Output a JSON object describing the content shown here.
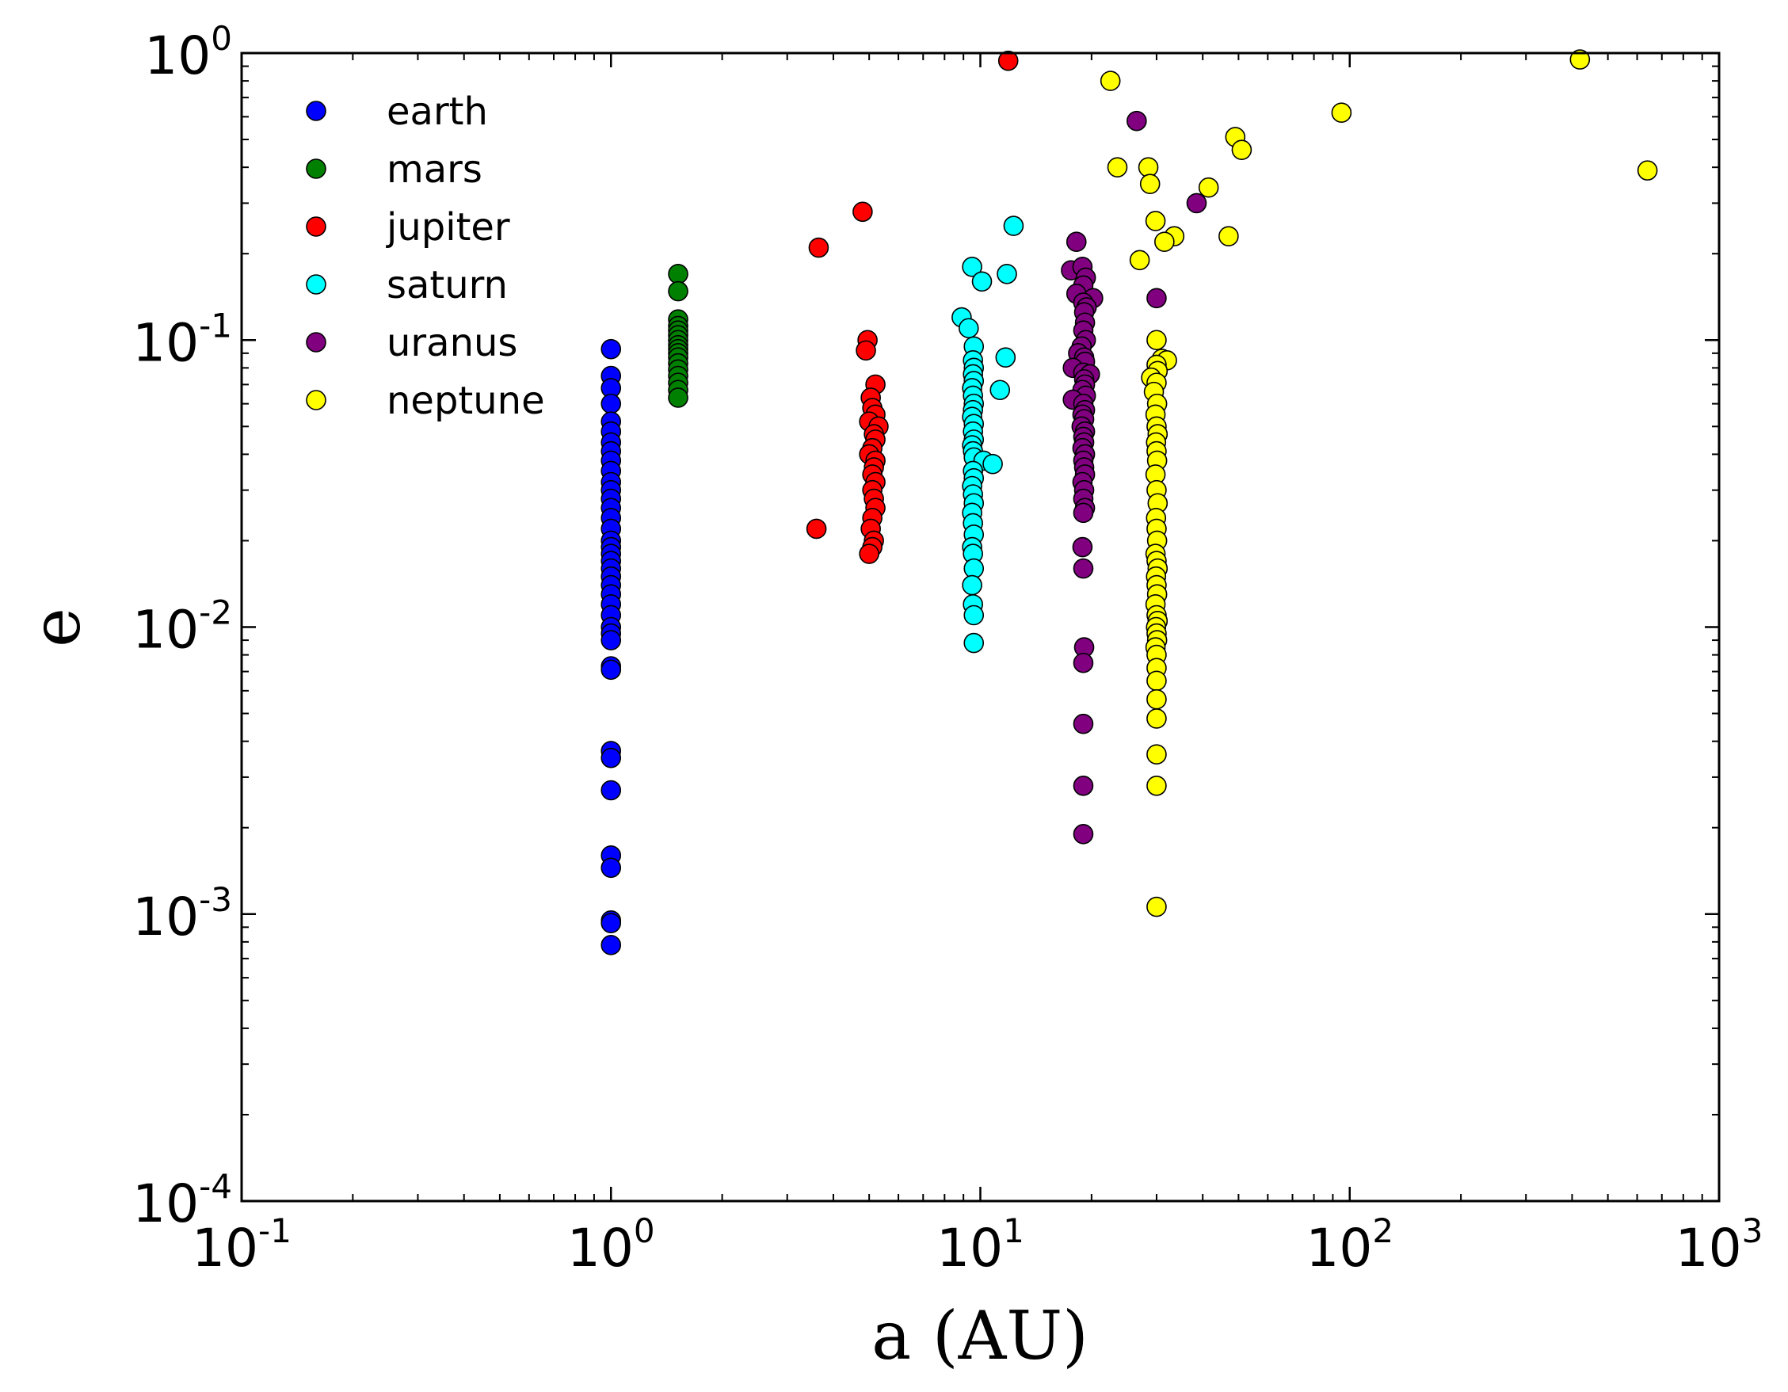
{
  "chart_data": {
    "type": "scatter",
    "x_scale": "log",
    "y_scale": "log",
    "xlabel": "a (AU)",
    "ylabel": "e",
    "xlim": [
      0.1,
      1000
    ],
    "ylim": [
      0.0001,
      1
    ],
    "legend_position": "top-left",
    "x_ticks": [
      {
        "base": "10",
        "exp": "-1",
        "value": 0.1
      },
      {
        "base": "10",
        "exp": "0",
        "value": 1
      },
      {
        "base": "10",
        "exp": "1",
        "value": 10
      },
      {
        "base": "10",
        "exp": "2",
        "value": 100
      },
      {
        "base": "10",
        "exp": "3",
        "value": 1000
      }
    ],
    "y_ticks": [
      {
        "base": "10",
        "exp": "-4",
        "value": 0.0001
      },
      {
        "base": "10",
        "exp": "-3",
        "value": 0.001
      },
      {
        "base": "10",
        "exp": "-2",
        "value": 0.01
      },
      {
        "base": "10",
        "exp": "-1",
        "value": 0.1
      },
      {
        "base": "10",
        "exp": "0",
        "value": 1
      }
    ],
    "series": [
      {
        "name": "earth",
        "color": "#0000ff",
        "points": [
          [
            1.0,
            0.093
          ],
          [
            1.0,
            0.075
          ],
          [
            1.0,
            0.068
          ],
          [
            1.0,
            0.06
          ],
          [
            1.0,
            0.052
          ],
          [
            1.0,
            0.048
          ],
          [
            1.0,
            0.044
          ],
          [
            1.0,
            0.041
          ],
          [
            1.0,
            0.038
          ],
          [
            1.0,
            0.035
          ],
          [
            1.0,
            0.032
          ],
          [
            1.0,
            0.03
          ],
          [
            1.0,
            0.028
          ],
          [
            1.0,
            0.026
          ],
          [
            1.0,
            0.024
          ],
          [
            1.0,
            0.022
          ],
          [
            1.0,
            0.02
          ],
          [
            1.0,
            0.019
          ],
          [
            1.0,
            0.018
          ],
          [
            1.0,
            0.017
          ],
          [
            1.0,
            0.016
          ],
          [
            1.0,
            0.015
          ],
          [
            1.0,
            0.014
          ],
          [
            1.0,
            0.013
          ],
          [
            1.0,
            0.012
          ],
          [
            1.0,
            0.011
          ],
          [
            1.0,
            0.01
          ],
          [
            1.0,
            0.0095
          ],
          [
            1.0,
            0.009
          ],
          [
            1.0,
            0.0073
          ],
          [
            1.0,
            0.0071
          ],
          [
            1.0,
            0.0037
          ],
          [
            1.0,
            0.0035
          ],
          [
            1.0,
            0.0027
          ],
          [
            1.0,
            0.0016
          ],
          [
            1.0,
            0.00145
          ],
          [
            1.0,
            0.00095
          ],
          [
            1.0,
            0.00093
          ],
          [
            1.0,
            0.00078
          ]
        ]
      },
      {
        "name": "mars",
        "color": "#008000",
        "points": [
          [
            1.52,
            0.17
          ],
          [
            1.52,
            0.148
          ],
          [
            1.52,
            0.118
          ],
          [
            1.52,
            0.112
          ],
          [
            1.52,
            0.108
          ],
          [
            1.52,
            0.104
          ],
          [
            1.52,
            0.1
          ],
          [
            1.52,
            0.096
          ],
          [
            1.52,
            0.093
          ],
          [
            1.52,
            0.09
          ],
          [
            1.52,
            0.087
          ],
          [
            1.52,
            0.083
          ],
          [
            1.52,
            0.079
          ],
          [
            1.52,
            0.075
          ],
          [
            1.52,
            0.071
          ],
          [
            1.52,
            0.067
          ],
          [
            1.52,
            0.063
          ]
        ]
      },
      {
        "name": "jupiter",
        "color": "#ff0000",
        "points": [
          [
            11.9,
            0.94
          ],
          [
            4.8,
            0.28
          ],
          [
            3.65,
            0.21
          ],
          [
            4.95,
            0.1
          ],
          [
            4.9,
            0.092
          ],
          [
            5.2,
            0.07
          ],
          [
            5.05,
            0.063
          ],
          [
            5.1,
            0.058
          ],
          [
            5.2,
            0.055
          ],
          [
            5.0,
            0.052
          ],
          [
            5.3,
            0.05
          ],
          [
            5.15,
            0.047
          ],
          [
            5.2,
            0.045
          ],
          [
            5.1,
            0.042
          ],
          [
            5.0,
            0.04
          ],
          [
            5.2,
            0.038
          ],
          [
            5.15,
            0.036
          ],
          [
            5.1,
            0.034
          ],
          [
            5.2,
            0.032
          ],
          [
            5.1,
            0.03
          ],
          [
            5.15,
            0.028
          ],
          [
            5.2,
            0.026
          ],
          [
            5.1,
            0.024
          ],
          [
            5.05,
            0.022
          ],
          [
            5.15,
            0.02
          ],
          [
            5.1,
            0.019
          ],
          [
            5.0,
            0.018
          ],
          [
            3.6,
            0.022
          ]
        ]
      },
      {
        "name": "saturn",
        "color": "#00ffff",
        "points": [
          [
            12.3,
            0.25
          ],
          [
            9.5,
            0.18
          ],
          [
            11.8,
            0.17
          ],
          [
            10.1,
            0.16
          ],
          [
            8.9,
            0.12
          ],
          [
            9.3,
            0.11
          ],
          [
            9.6,
            0.095
          ],
          [
            11.7,
            0.087
          ],
          [
            9.55,
            0.085
          ],
          [
            9.6,
            0.08
          ],
          [
            9.55,
            0.076
          ],
          [
            9.6,
            0.072
          ],
          [
            9.5,
            0.068
          ],
          [
            11.3,
            0.067
          ],
          [
            9.55,
            0.064
          ],
          [
            9.6,
            0.06
          ],
          [
            9.55,
            0.057
          ],
          [
            9.5,
            0.054
          ],
          [
            9.6,
            0.051
          ],
          [
            9.55,
            0.048
          ],
          [
            9.6,
            0.045
          ],
          [
            9.5,
            0.043
          ],
          [
            9.55,
            0.041
          ],
          [
            9.6,
            0.039
          ],
          [
            10.2,
            0.038
          ],
          [
            10.8,
            0.037
          ],
          [
            9.55,
            0.035
          ],
          [
            9.6,
            0.033
          ],
          [
            9.5,
            0.031
          ],
          [
            9.55,
            0.029
          ],
          [
            9.6,
            0.027
          ],
          [
            9.5,
            0.025
          ],
          [
            9.55,
            0.023
          ],
          [
            9.6,
            0.021
          ],
          [
            9.5,
            0.019
          ],
          [
            9.55,
            0.018
          ],
          [
            9.6,
            0.016
          ],
          [
            9.5,
            0.014
          ],
          [
            9.55,
            0.012
          ],
          [
            9.6,
            0.011
          ],
          [
            9.6,
            0.0088
          ]
        ]
      },
      {
        "name": "uranus",
        "color": "#800080",
        "points": [
          [
            26.5,
            0.58
          ],
          [
            38.5,
            0.3
          ],
          [
            18.2,
            0.22
          ],
          [
            17.6,
            0.175
          ],
          [
            18.9,
            0.18
          ],
          [
            19.3,
            0.165
          ],
          [
            19.0,
            0.155
          ],
          [
            18.2,
            0.145
          ],
          [
            20.2,
            0.14
          ],
          [
            19.0,
            0.135
          ],
          [
            30.0,
            0.14
          ],
          [
            19.4,
            0.13
          ],
          [
            19.1,
            0.125
          ],
          [
            19.2,
            0.115
          ],
          [
            19.0,
            0.108
          ],
          [
            19.3,
            0.1
          ],
          [
            18.8,
            0.095
          ],
          [
            18.4,
            0.09
          ],
          [
            19.1,
            0.087
          ],
          [
            19.2,
            0.084
          ],
          [
            17.8,
            0.08
          ],
          [
            19.0,
            0.077
          ],
          [
            19.8,
            0.076
          ],
          [
            19.1,
            0.073
          ],
          [
            19.2,
            0.07
          ],
          [
            18.9,
            0.067
          ],
          [
            19.3,
            0.064
          ],
          [
            17.8,
            0.062
          ],
          [
            19.0,
            0.06
          ],
          [
            19.2,
            0.057
          ],
          [
            18.9,
            0.055
          ],
          [
            19.1,
            0.053
          ],
          [
            18.8,
            0.05
          ],
          [
            19.2,
            0.048
          ],
          [
            19.0,
            0.046
          ],
          [
            19.1,
            0.044
          ],
          [
            18.9,
            0.042
          ],
          [
            19.2,
            0.04
          ],
          [
            19.0,
            0.038
          ],
          [
            19.1,
            0.036
          ],
          [
            19.2,
            0.034
          ],
          [
            18.9,
            0.032
          ],
          [
            19.1,
            0.03
          ],
          [
            19.0,
            0.028
          ],
          [
            19.2,
            0.026
          ],
          [
            19.0,
            0.025
          ],
          [
            18.9,
            0.019
          ],
          [
            19.0,
            0.016
          ],
          [
            19.1,
            0.0085
          ],
          [
            19.0,
            0.0075
          ],
          [
            19.0,
            0.0046
          ],
          [
            19.0,
            0.0028
          ],
          [
            19.0,
            0.0019
          ]
        ]
      },
      {
        "name": "neptune",
        "color": "#ffff00",
        "points": [
          [
            420,
            0.95
          ],
          [
            22.5,
            0.8
          ],
          [
            95,
            0.62
          ],
          [
            49,
            0.51
          ],
          [
            51,
            0.46
          ],
          [
            23.5,
            0.4
          ],
          [
            28.5,
            0.4
          ],
          [
            28.8,
            0.35
          ],
          [
            41.5,
            0.34
          ],
          [
            640,
            0.39
          ],
          [
            29.8,
            0.26
          ],
          [
            33.5,
            0.23
          ],
          [
            47,
            0.23
          ],
          [
            31.5,
            0.22
          ],
          [
            27.0,
            0.19
          ],
          [
            30.0,
            0.1
          ],
          [
            31.0,
            0.086
          ],
          [
            32.0,
            0.085
          ],
          [
            30.0,
            0.082
          ],
          [
            30.2,
            0.078
          ],
          [
            29.0,
            0.074
          ],
          [
            30.0,
            0.071
          ],
          [
            29.5,
            0.066
          ],
          [
            30.1,
            0.06
          ],
          [
            29.8,
            0.055
          ],
          [
            30.0,
            0.05
          ],
          [
            30.2,
            0.047
          ],
          [
            29.9,
            0.044
          ],
          [
            30.0,
            0.041
          ],
          [
            30.1,
            0.038
          ],
          [
            29.8,
            0.034
          ],
          [
            30.0,
            0.03
          ],
          [
            30.2,
            0.027
          ],
          [
            29.9,
            0.024
          ],
          [
            30.0,
            0.022
          ],
          [
            30.1,
            0.02
          ],
          [
            29.8,
            0.018
          ],
          [
            30.0,
            0.017
          ],
          [
            30.2,
            0.016
          ],
          [
            29.9,
            0.015
          ],
          [
            30.0,
            0.014
          ],
          [
            30.1,
            0.013
          ],
          [
            29.8,
            0.012
          ],
          [
            30.0,
            0.011
          ],
          [
            30.2,
            0.0105
          ],
          [
            29.9,
            0.01
          ],
          [
            30.0,
            0.0095
          ],
          [
            30.1,
            0.009
          ],
          [
            29.8,
            0.0085
          ],
          [
            30.0,
            0.008
          ],
          [
            30.0,
            0.0072
          ],
          [
            30.0,
            0.0065
          ],
          [
            30.0,
            0.0056
          ],
          [
            30.0,
            0.0048
          ],
          [
            30.0,
            0.0036
          ],
          [
            30.0,
            0.0028
          ],
          [
            30.0,
            0.00106
          ]
        ]
      }
    ]
  }
}
